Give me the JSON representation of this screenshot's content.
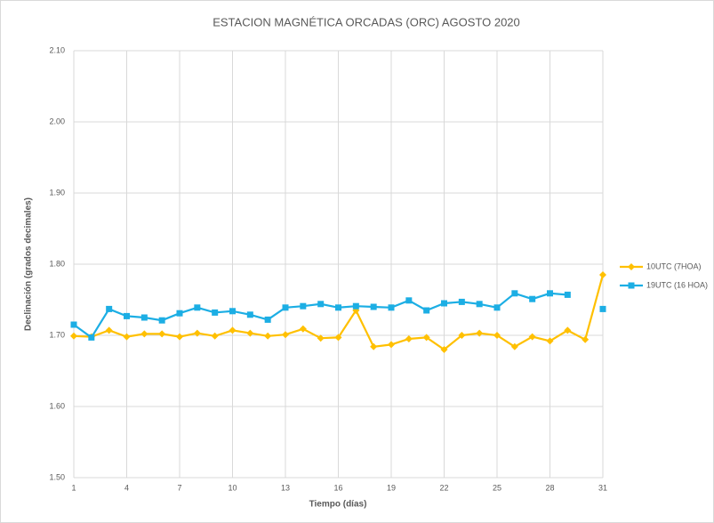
{
  "chart_data": {
    "type": "line",
    "title": "ESTACION MAGNÉTICA ORCADAS (ORC)  AGOSTO 2020",
    "x_label": "Tiempo (días)",
    "y_label": "Declinación (grados decimales)",
    "x": [
      1,
      2,
      3,
      4,
      5,
      6,
      7,
      8,
      9,
      10,
      11,
      12,
      13,
      14,
      15,
      16,
      17,
      18,
      19,
      20,
      21,
      22,
      23,
      24,
      25,
      26,
      27,
      28,
      29,
      30,
      31
    ],
    "series": [
      {
        "name": "10UTC (7HOA)",
        "color": "#FFC000",
        "marker": "diamond",
        "values": [
          1.699,
          1.698,
          1.707,
          1.698,
          1.702,
          1.702,
          1.698,
          1.703,
          1.699,
          1.707,
          1.703,
          1.699,
          1.701,
          1.709,
          1.696,
          1.697,
          1.735,
          1.684,
          1.687,
          1.695,
          1.697,
          1.68,
          1.7,
          1.703,
          1.7,
          1.684,
          1.698,
          1.692,
          1.707,
          1.694,
          1.785
        ]
      },
      {
        "name": "19UTC (16 HOA)",
        "color": "#1CAEE4",
        "marker": "square",
        "values": [
          1.715,
          1.697,
          1.737,
          1.727,
          1.725,
          1.721,
          1.731,
          1.739,
          1.732,
          1.734,
          1.729,
          1.722,
          1.739,
          1.741,
          1.744,
          1.739,
          1.741,
          1.74,
          1.739,
          1.749,
          1.735,
          1.745,
          1.747,
          1.744,
          1.739,
          1.759,
          1.751,
          1.759,
          1.757,
          null,
          1.737
        ]
      }
    ],
    "xlim": [
      1,
      31
    ],
    "xticks": [
      1,
      4,
      7,
      10,
      13,
      16,
      19,
      22,
      25,
      28,
      31
    ],
    "ylim": [
      1.5,
      2.1
    ],
    "yticks": [
      {
        "value": 1.5,
        "label": "1.50"
      },
      {
        "value": 1.6,
        "label": "1.60"
      },
      {
        "value": 1.7,
        "label": "1.70"
      },
      {
        "value": 1.8,
        "label": "1.80"
      },
      {
        "value": 1.9,
        "label": "1.90"
      },
      {
        "value": 2.0,
        "label": "2.00"
      },
      {
        "value": 2.1,
        "label": "2.10"
      }
    ],
    "grid": true,
    "legend": "right"
  }
}
